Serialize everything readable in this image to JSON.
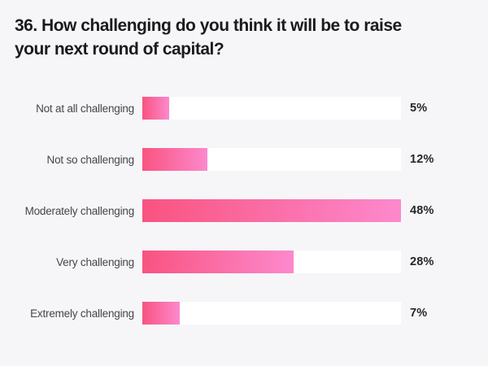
{
  "title_lines": [
    "36. How challenging do you think it will be to raise",
    "your next round of capital?"
  ],
  "colors": {
    "background": "#f6f6f8",
    "track": "#ffffff",
    "bar_gradient_start": "#f95380",
    "bar_gradient_end": "#fc89cd",
    "title_text": "#1b1b1e",
    "label_text": "#45454b",
    "value_text": "#26262b"
  },
  "chart_data": {
    "type": "bar",
    "orientation": "horizontal",
    "title": "36. How challenging do you think it will be to raise your next round of capital?",
    "categories": [
      "Not at all challenging",
      "Not so challenging",
      "Moderately challenging",
      "Very challenging",
      "Extremely challenging"
    ],
    "values": [
      5,
      12,
      48,
      28,
      7
    ],
    "value_labels": [
      "5%",
      "12%",
      "48%",
      "28%",
      "7%"
    ],
    "xlabel": "",
    "ylabel": "",
    "xlim": [
      0,
      48
    ],
    "grid": false,
    "legend": false,
    "scale_note": "bar lengths are relative to the maximum value (48% fills the track)"
  }
}
